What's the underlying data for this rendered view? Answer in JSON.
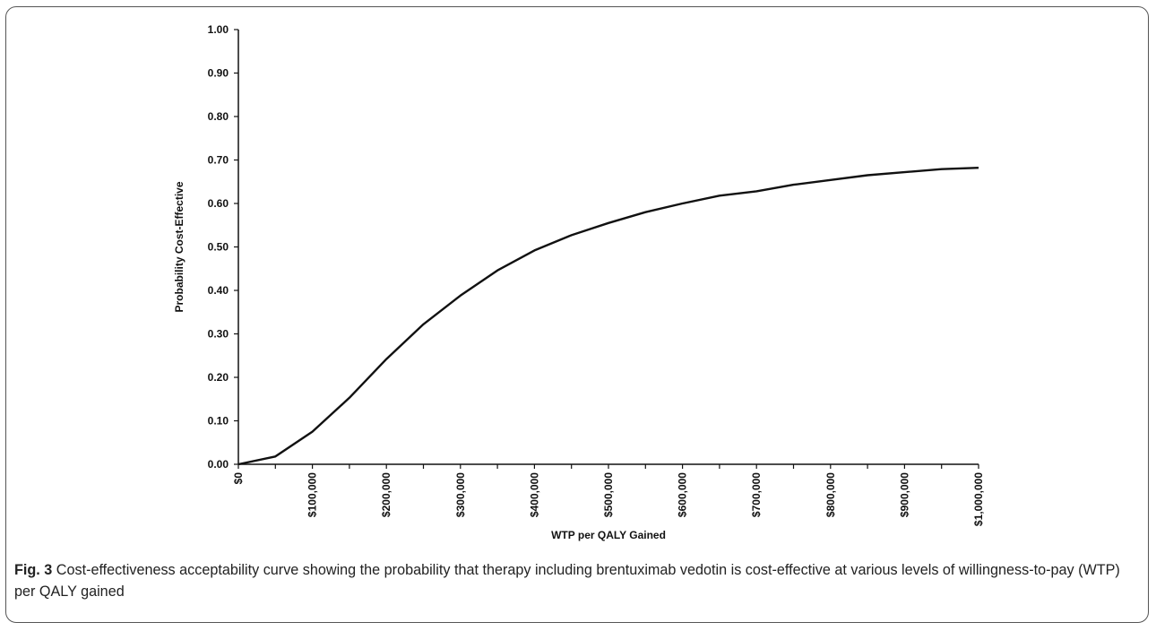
{
  "figure": {
    "label": "Fig. 3",
    "caption": "Cost-effectiveness acceptability curve showing the probability that therapy including brentuximab vedotin is cost-effective at various levels of willingness-to-pay (WTP) per QALY gained"
  },
  "chart_data": {
    "type": "line",
    "title": "",
    "xlabel": "WTP per QALY Gained",
    "ylabel": "Probability Cost-Effective",
    "xlim": [
      0,
      1000000
    ],
    "ylim": [
      0,
      1
    ],
    "grid": false,
    "x_tick_values": [
      0,
      100000,
      200000,
      300000,
      400000,
      500000,
      600000,
      700000,
      800000,
      900000,
      1000000
    ],
    "x_tick_labels": [
      "$0",
      "$100,000",
      "$200,000",
      "$300,000",
      "$400,000",
      "$500,000",
      "$600,000",
      "$700,000",
      "$800,000",
      "$900,000",
      "$1,000,000"
    ],
    "x_minor_tick_step": 50000,
    "y_tick_values": [
      0,
      0.1,
      0.2,
      0.3,
      0.4,
      0.5,
      0.6,
      0.7,
      0.8,
      0.9,
      1.0
    ],
    "y_tick_labels": [
      "0.00",
      "0.10",
      "0.20",
      "0.30",
      "0.40",
      "0.50",
      "0.60",
      "0.70",
      "0.80",
      "0.90",
      "1.00"
    ],
    "series": [
      {
        "x": [
          0,
          50000,
          100000,
          150000,
          200000,
          250000,
          300000,
          350000,
          400000,
          450000,
          500000,
          550000,
          600000,
          650000,
          700000,
          750000,
          800000,
          850000,
          900000,
          950000,
          1000000
        ],
        "values": [
          0.0,
          0.018,
          0.075,
          0.153,
          0.242,
          0.322,
          0.388,
          0.446,
          0.492,
          0.527,
          0.555,
          0.58,
          0.6,
          0.618,
          0.628,
          0.643,
          0.654,
          0.665,
          0.672,
          0.679,
          0.682
        ]
      }
    ],
    "line_color": "#111111",
    "axis_color": "#111111"
  }
}
